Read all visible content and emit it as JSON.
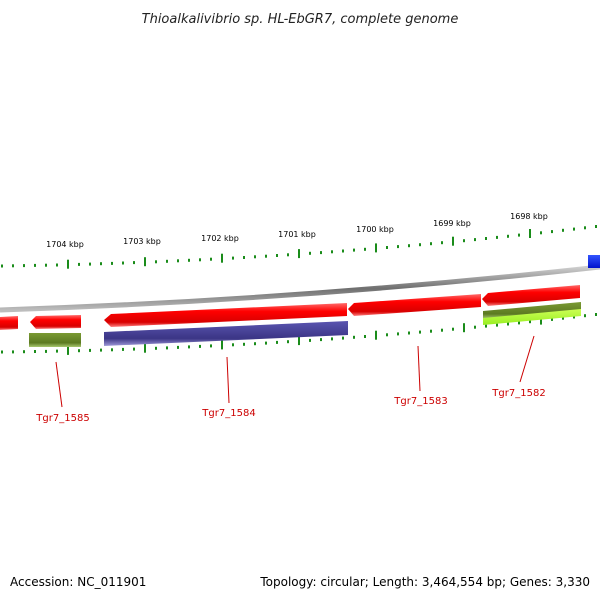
{
  "title": "Thioalkalivibrio sp. HL-EbGR7, complete genome",
  "footer": {
    "accession": "Accession: NC_011901",
    "summary": "Topology: circular; Length: 3,464,554 bp; Genes: 3,330"
  },
  "colors": {
    "forward_cds": "#ff0000",
    "cds_shadow": "#990000",
    "purple_feature": "#4a4499",
    "olive_feature": "#6b8a2a",
    "lime_feature": "#aaff33",
    "blue_feature": "#0022ff",
    "tick": "#1a8c1a",
    "backbone": "#808080",
    "gene_label": "#cc0000"
  },
  "scale_labels": [
    "1704 kbp",
    "1703 kbp",
    "1702 kbp",
    "1701 kbp",
    "1700 kbp",
    "1699 kbp",
    "1698 kbp"
  ],
  "gene_labels": [
    "Tgr7_1585",
    "Tgr7_1584",
    "Tgr7_1583",
    "Tgr7_1582"
  ]
}
